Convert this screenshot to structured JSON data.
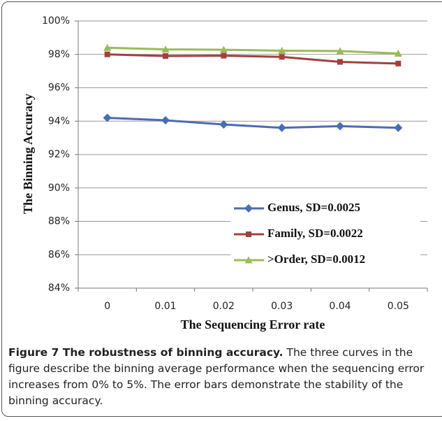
{
  "chart_data": {
    "type": "line",
    "y_label": "The Binning Accuracy",
    "x_label": "The Sequencing Error rate",
    "categories": [
      "0",
      "0.01",
      "0.02",
      "0.03",
      "0.04",
      "0.05"
    ],
    "series": [
      {
        "name": "Genus, SD=0.0025",
        "color": "#4a6cb3",
        "marker": "diamond",
        "values": [
          94.2,
          94.05,
          93.8,
          93.6,
          93.7,
          93.6
        ]
      },
      {
        "name": "Family, SD=0.0022",
        "color": "#a0413c",
        "marker": "square",
        "values": [
          98.0,
          97.9,
          97.92,
          97.85,
          97.55,
          97.45
        ]
      },
      {
        "name": ">Order, SD=0.0012",
        "color": "#9bbb59",
        "marker": "triangle",
        "values": [
          98.4,
          98.3,
          98.28,
          98.22,
          98.2,
          98.05
        ]
      }
    ],
    "ylim": [
      84,
      100
    ],
    "yticks": [
      {
        "value": 84,
        "label": "84%"
      },
      {
        "value": 86,
        "label": "86%"
      },
      {
        "value": 88,
        "label": "88%"
      },
      {
        "value": 90,
        "label": "90%"
      },
      {
        "value": 92,
        "label": "92%"
      },
      {
        "value": 94,
        "label": "94%"
      },
      {
        "value": 96,
        "label": "96%"
      },
      {
        "value": 98,
        "label": "98%"
      },
      {
        "value": 100,
        "label": "100%"
      }
    ],
    "grid": true,
    "legend": "lower right"
  },
  "caption": {
    "label": "Figure 7 The robustness of binning accuracy.",
    "text": "The three curves in the figure describe the binning average performance when the sequencing error increases from 0% to 5%. The error bars demonstrate the stability of the binning accuracy."
  }
}
